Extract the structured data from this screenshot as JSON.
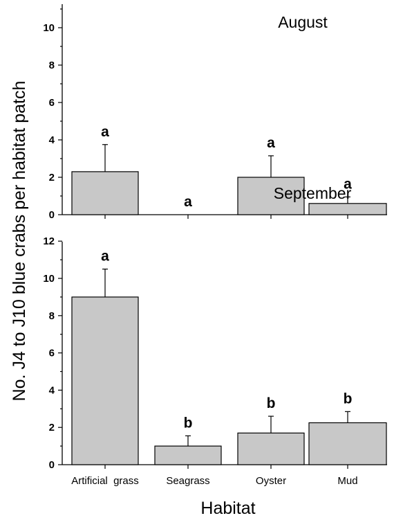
{
  "chart_data": [
    {
      "type": "bar",
      "title": "August",
      "categories": [
        "Artificial grass",
        "Seagrass",
        "Oyster",
        "Mud"
      ],
      "values": [
        2.3,
        0.0,
        2.0,
        0.6
      ],
      "error": [
        1.45,
        0.0,
        1.15,
        0.35
      ],
      "significance": [
        "a",
        "a",
        "a",
        "a"
      ],
      "ylim": [
        0,
        11.2
      ],
      "yticks": [
        0,
        2,
        4,
        6,
        8,
        10
      ],
      "bar_color": "#c8c8c8",
      "grid": false
    },
    {
      "type": "bar",
      "title": "September",
      "categories": [
        "Artificial grass",
        "Seagrass",
        "Oyster",
        "Mud"
      ],
      "values": [
        9.0,
        1.0,
        1.7,
        2.25
      ],
      "error": [
        1.5,
        0.55,
        0.9,
        0.6
      ],
      "significance": [
        "a",
        "b",
        "b",
        "b"
      ],
      "ylim": [
        0,
        12
      ],
      "yticks": [
        0,
        2,
        4,
        6,
        8,
        10,
        12
      ],
      "bar_color": "#c8c8c8",
      "grid": false
    }
  ],
  "shared": {
    "ylabel": "No.  J4 to J10 blue crabs  per  habitat  patch",
    "xlabel": "Habitat",
    "category_labels": [
      "Artificial  grass",
      "Seagrass",
      "Oyster",
      "Mud"
    ]
  }
}
